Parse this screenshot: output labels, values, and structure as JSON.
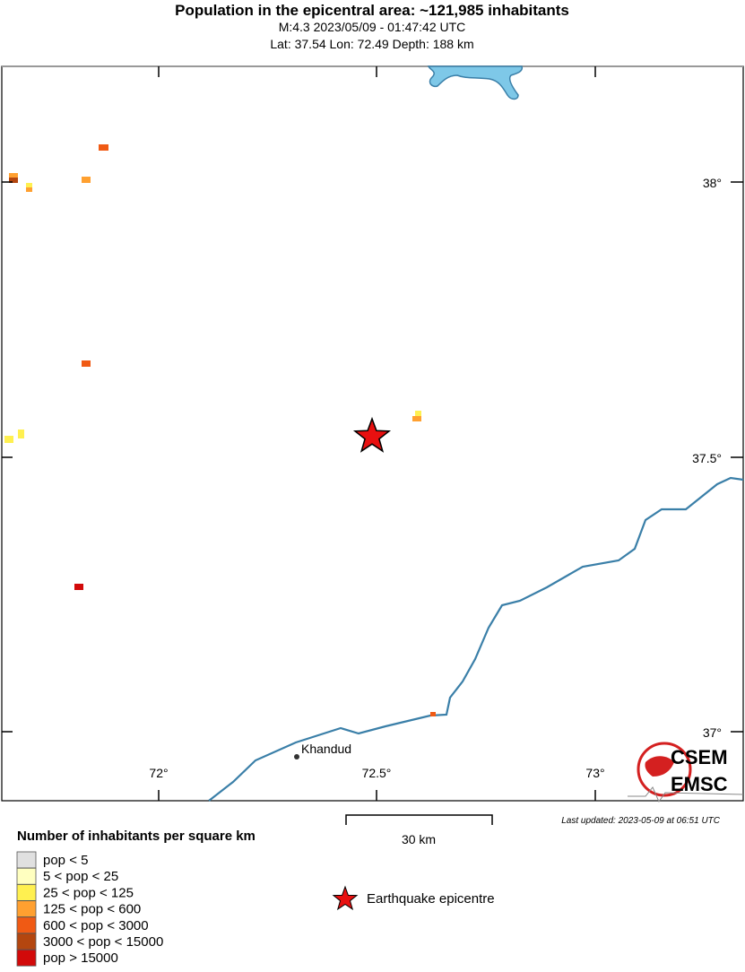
{
  "header": {
    "title": "Population in the epicentral area: ~121,985 inhabitants",
    "subtitle": "M:4.3 2023/05/09 - 01:47:42 UTC",
    "location": "Lat: 37.54 Lon: 72.49 Depth: 188 km"
  },
  "map": {
    "lat_labels": [
      "38°",
      "37.5°",
      "37°"
    ],
    "lon_labels": [
      "72°",
      "72.5°",
      "73°"
    ],
    "place": "Khandud",
    "scale_label": "30 km",
    "last_updated": "Last updated: 2023-05-09 at 06:51 UTC",
    "logo": [
      "CSEM",
      "EMSC"
    ]
  },
  "legend": {
    "title": "Number of inhabitants per square km",
    "items": [
      {
        "label": "pop < 5",
        "color": "#e0e0e0"
      },
      {
        "label": "5 < pop < 25",
        "color": "#ffffc0"
      },
      {
        "label": "25 < pop < 125",
        "color": "#fff050"
      },
      {
        "label": "125 < pop < 600",
        "color": "#ffa030"
      },
      {
        "label": "600 < pop < 3000",
        "color": "#f05a14"
      },
      {
        "label": "3000 < pop < 15000",
        "color": "#b4460f"
      },
      {
        "label": "pop > 15000",
        "color": "#d20a0a"
      }
    ],
    "epicentre": "Earthquake epicentre"
  }
}
